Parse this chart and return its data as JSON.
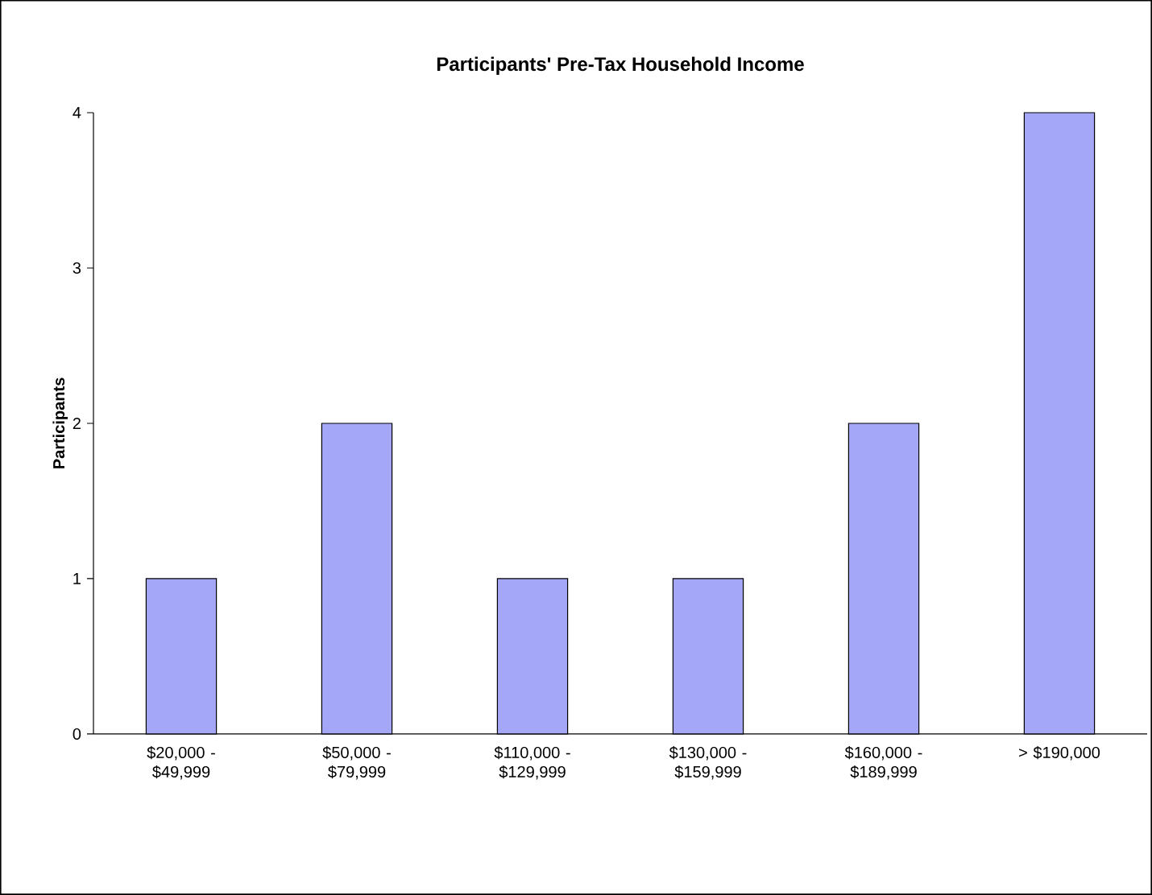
{
  "chart_data": {
    "type": "bar",
    "title": "Participants' Pre-Tax Household Income",
    "ylabel": "Participants",
    "categories": [
      "$20,000 - $49,999",
      "$50,000 - $79,999",
      "$110,000 - $129,999",
      "$130,000 - $159,999",
      "$160,000 - $189,999",
      "> $190,000"
    ],
    "values": [
      1,
      2,
      1,
      1,
      2,
      4
    ],
    "color": "#a4a7f6",
    "ylim": [
      0,
      4
    ],
    "yticks": [
      0,
      1,
      2,
      3,
      4
    ]
  }
}
